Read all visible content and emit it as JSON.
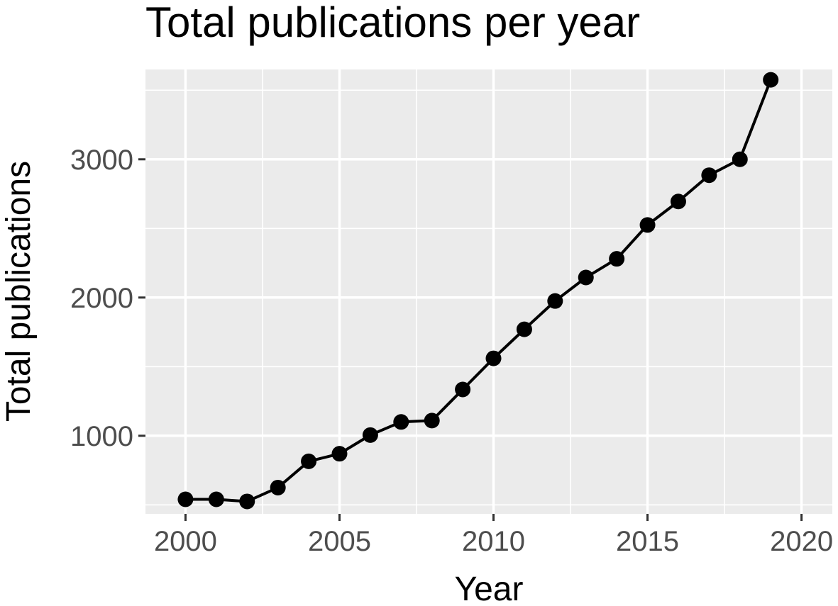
{
  "chart_data": {
    "type": "line",
    "title": "Total publications per year",
    "xlabel": "Year",
    "ylabel": "Total publications",
    "x": [
      2000,
      2001,
      2002,
      2003,
      2004,
      2005,
      2006,
      2007,
      2008,
      2009,
      2010,
      2011,
      2012,
      2013,
      2014,
      2015,
      2016,
      2017,
      2018,
      2019
    ],
    "series": [
      {
        "values": [
          540,
          540,
          525,
          625,
          815,
          870,
          1005,
          1100,
          1110,
          1335,
          1560,
          1770,
          1975,
          2145,
          2280,
          2525,
          2695,
          2885,
          3000,
          3575
        ]
      }
    ],
    "xlim": [
      1998.7,
      2021.0
    ],
    "ylim": [
      435,
      3650
    ],
    "x_ticks": [
      2000,
      2005,
      2010,
      2015,
      2020
    ],
    "x_tick_labels": [
      "2000",
      "2005",
      "2010",
      "2015",
      "2020"
    ],
    "y_ticks": [
      1000,
      2000,
      3000
    ],
    "y_tick_labels": [
      "1000",
      "2000",
      "3000"
    ],
    "grid": true,
    "legend": "none",
    "colors": {
      "panel_background": "#ebebeb",
      "grid": "#ffffff",
      "line": "#000000",
      "point": "#000000",
      "tick_label": "#4d4d4d",
      "tick_mark": "#333333",
      "text": "#000000"
    }
  }
}
